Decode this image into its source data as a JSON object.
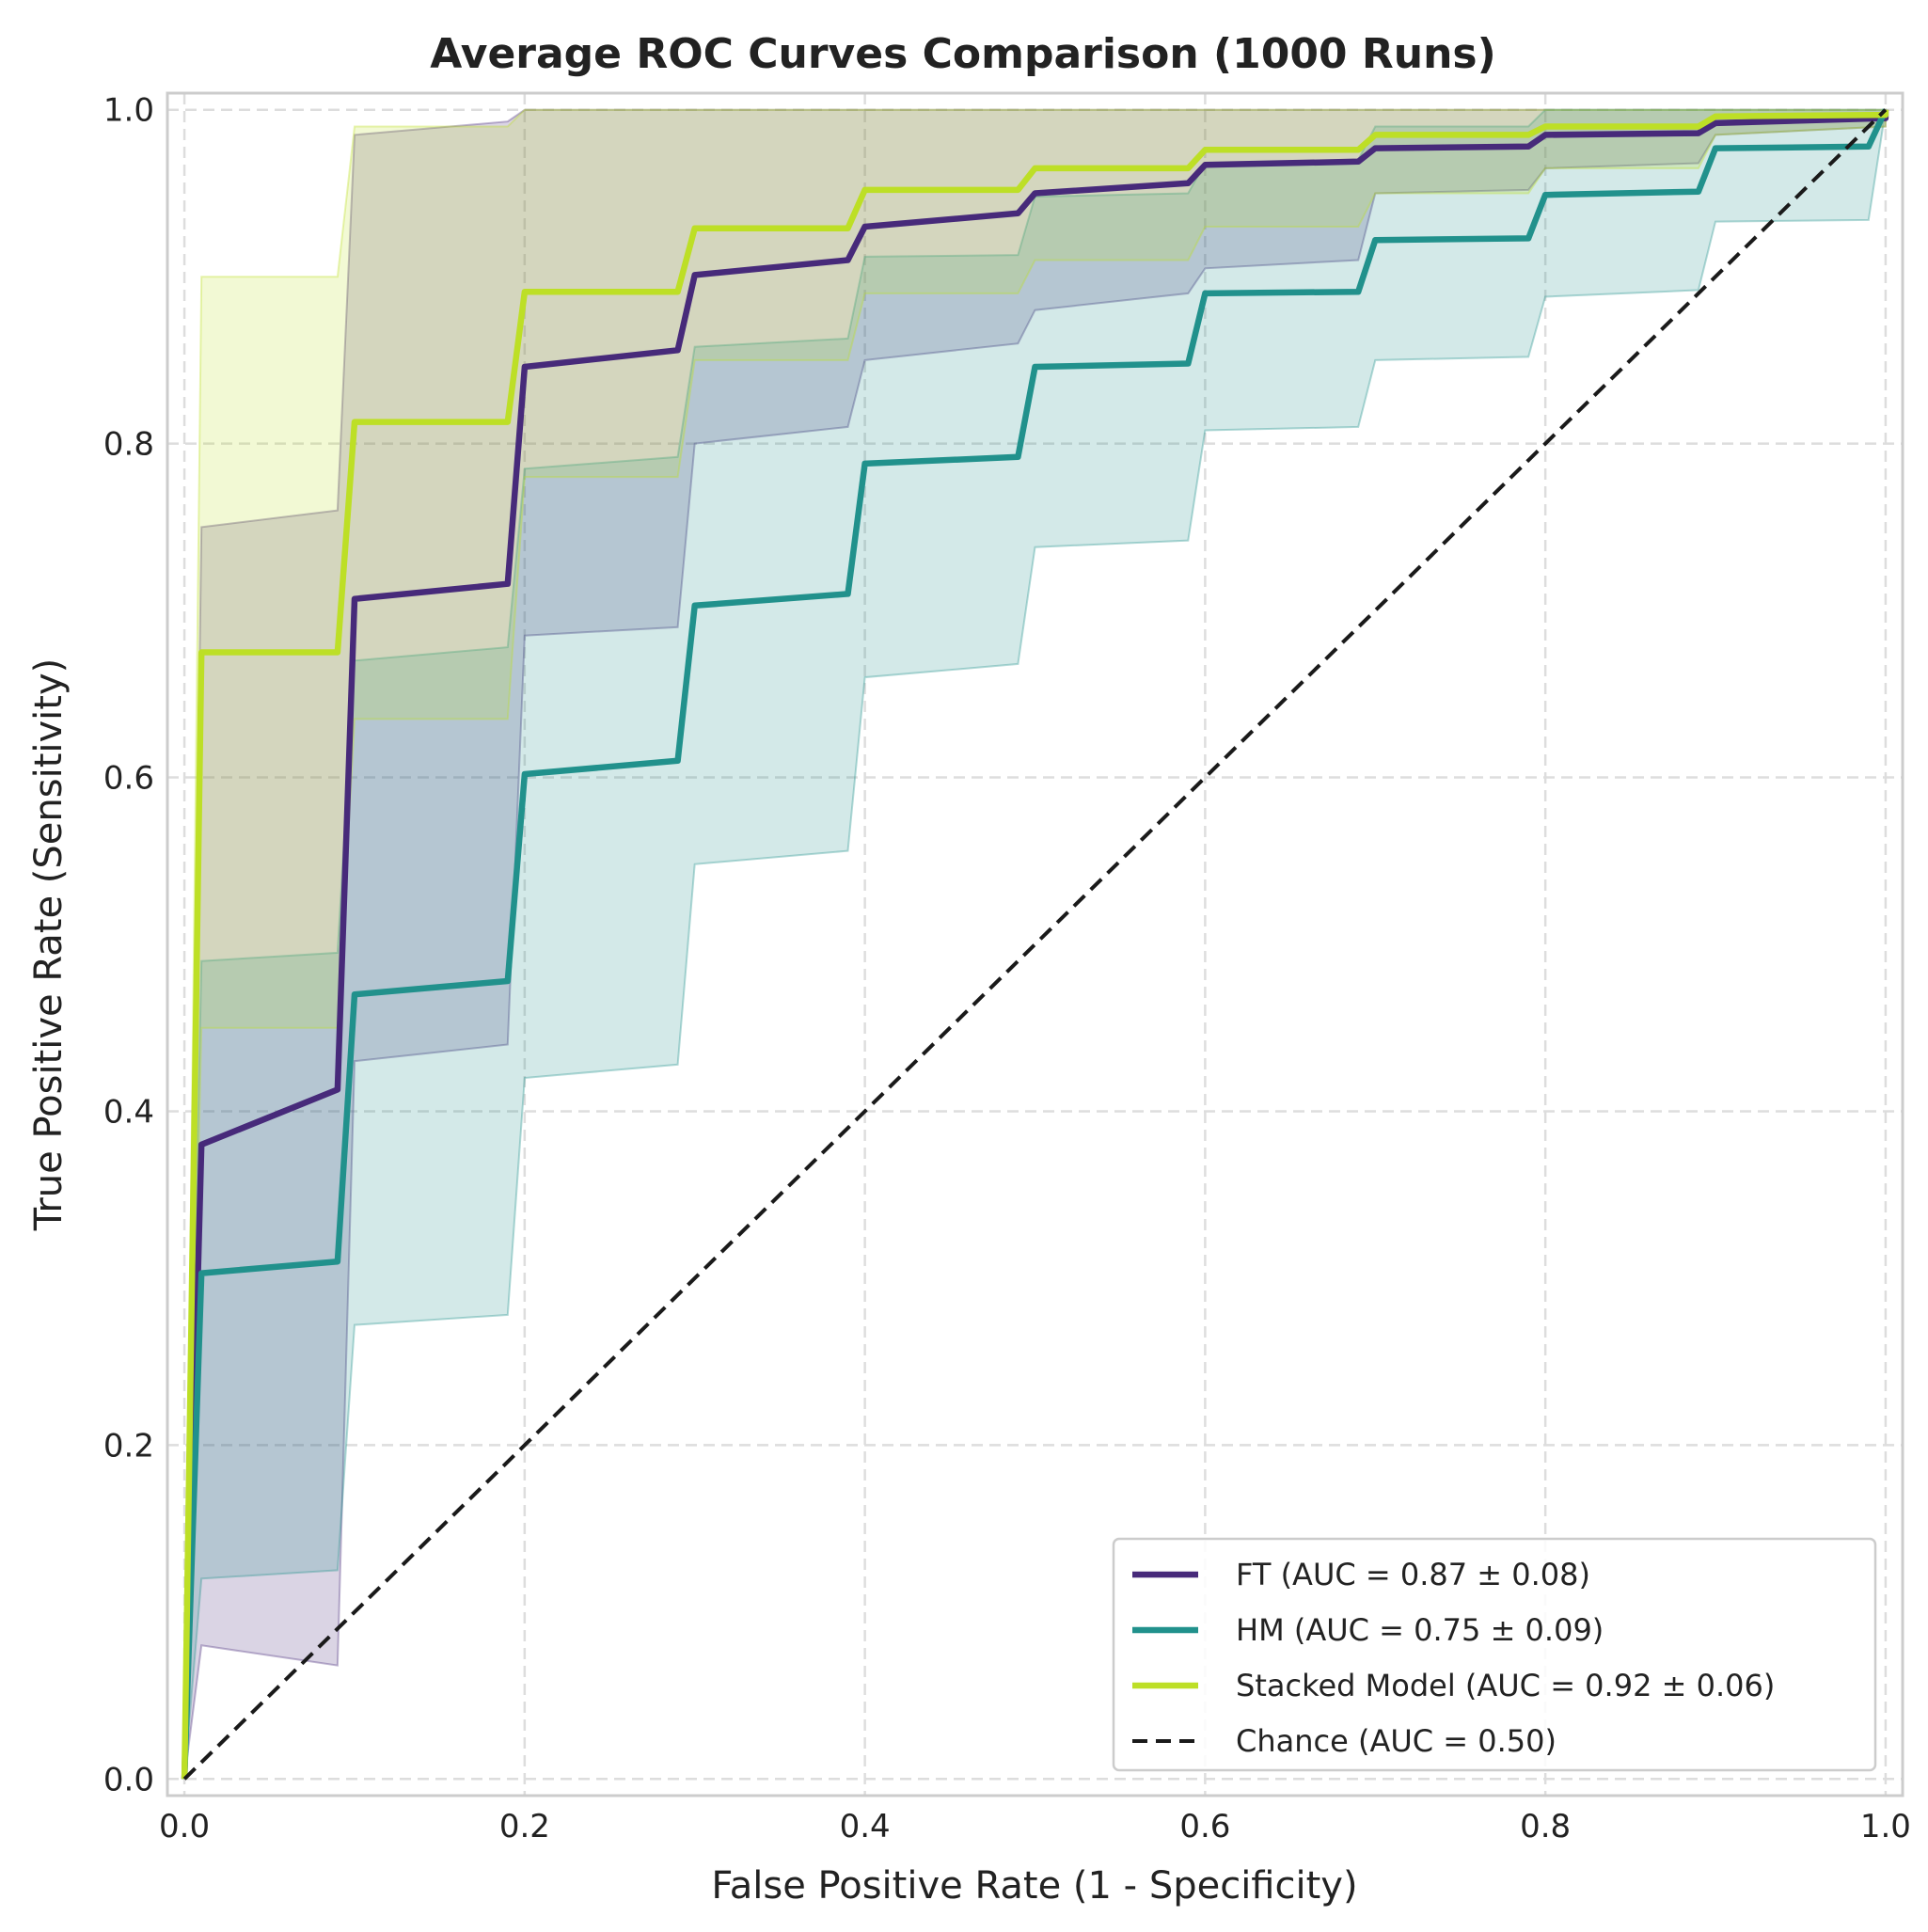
{
  "chart_data": {
    "type": "line",
    "title": "Average ROC Curves Comparison (1000 Runs)",
    "xlabel": "False Positive Rate (1 - Specificity)",
    "ylabel": "True Positive Rate (Sensitivity)",
    "xlim": [
      -0.01,
      1.01
    ],
    "ylim": [
      -0.01,
      1.01
    ],
    "xticks": [
      0.0,
      0.2,
      0.4,
      0.6,
      0.8,
      1.0
    ],
    "yticks": [
      0.0,
      0.2,
      0.4,
      0.6,
      0.8,
      1.0
    ],
    "xtick_labels": [
      "0.0",
      "0.2",
      "0.4",
      "0.6",
      "0.8",
      "1.0"
    ],
    "ytick_labels": [
      "0.0",
      "0.2",
      "0.4",
      "0.6",
      "0.8",
      "1.0"
    ],
    "grid": true,
    "legend_position": "lower-right",
    "series": [
      {
        "name": "FT (AUC = 0.87 ± 0.08)",
        "color": "#472a7a",
        "fill_color": "#472a7a",
        "fill_opacity": 0.2,
        "points": [
          [
            0,
            0
          ],
          [
            0.01,
            0.38
          ],
          [
            0.09,
            0.413
          ],
          [
            0.1,
            0.707
          ],
          [
            0.19,
            0.716
          ],
          [
            0.2,
            0.846
          ],
          [
            0.29,
            0.856
          ],
          [
            0.3,
            0.901
          ],
          [
            0.39,
            0.91
          ],
          [
            0.4,
            0.93
          ],
          [
            0.49,
            0.938
          ],
          [
            0.5,
            0.95
          ],
          [
            0.59,
            0.956
          ],
          [
            0.6,
            0.967
          ],
          [
            0.69,
            0.969
          ],
          [
            0.7,
            0.977
          ],
          [
            0.79,
            0.978
          ],
          [
            0.8,
            0.985
          ],
          [
            0.89,
            0.986
          ],
          [
            0.9,
            0.992
          ],
          [
            1.0,
            0.995
          ],
          [
            1.0,
            1.0
          ]
        ],
        "upper": [
          [
            0,
            0
          ],
          [
            0.01,
            0.75
          ],
          [
            0.09,
            0.76
          ],
          [
            0.1,
            0.985
          ],
          [
            0.19,
            0.993
          ],
          [
            0.2,
            1.0
          ],
          [
            1.0,
            1.0
          ]
        ],
        "lower": [
          [
            0,
            0
          ],
          [
            0.01,
            0.08
          ],
          [
            0.09,
            0.068
          ],
          [
            0.1,
            0.43
          ],
          [
            0.19,
            0.44
          ],
          [
            0.2,
            0.685
          ],
          [
            0.29,
            0.69
          ],
          [
            0.3,
            0.8
          ],
          [
            0.39,
            0.81
          ],
          [
            0.4,
            0.85
          ],
          [
            0.49,
            0.86
          ],
          [
            0.5,
            0.88
          ],
          [
            0.59,
            0.89
          ],
          [
            0.6,
            0.905
          ],
          [
            0.69,
            0.91
          ],
          [
            0.7,
            0.95
          ],
          [
            0.79,
            0.952
          ],
          [
            0.8,
            0.965
          ],
          [
            0.89,
            0.968
          ],
          [
            0.9,
            0.985
          ],
          [
            1.0,
            0.99
          ],
          [
            1.0,
            1.0
          ]
        ]
      },
      {
        "name": "HM (AUC = 0.75 ± 0.09)",
        "color": "#21918c",
        "fill_color": "#21918c",
        "fill_opacity": 0.2,
        "points": [
          [
            0,
            0
          ],
          [
            0.01,
            0.303
          ],
          [
            0.09,
            0.31
          ],
          [
            0.1,
            0.47
          ],
          [
            0.19,
            0.478
          ],
          [
            0.2,
            0.602
          ],
          [
            0.29,
            0.61
          ],
          [
            0.3,
            0.703
          ],
          [
            0.39,
            0.71
          ],
          [
            0.4,
            0.788
          ],
          [
            0.49,
            0.792
          ],
          [
            0.5,
            0.846
          ],
          [
            0.59,
            0.848
          ],
          [
            0.6,
            0.89
          ],
          [
            0.69,
            0.891
          ],
          [
            0.7,
            0.922
          ],
          [
            0.79,
            0.923
          ],
          [
            0.8,
            0.949
          ],
          [
            0.89,
            0.951
          ],
          [
            0.9,
            0.977
          ],
          [
            0.99,
            0.978
          ],
          [
            1.0,
            1.0
          ]
        ],
        "upper": [
          [
            0,
            0
          ],
          [
            0.01,
            0.49
          ],
          [
            0.09,
            0.495
          ],
          [
            0.1,
            0.67
          ],
          [
            0.19,
            0.678
          ],
          [
            0.2,
            0.785
          ],
          [
            0.29,
            0.792
          ],
          [
            0.3,
            0.858
          ],
          [
            0.39,
            0.863
          ],
          [
            0.4,
            0.912
          ],
          [
            0.49,
            0.913
          ],
          [
            0.5,
            0.948
          ],
          [
            0.59,
            0.95
          ],
          [
            0.6,
            0.968
          ],
          [
            0.69,
            0.97
          ],
          [
            0.7,
            0.99
          ],
          [
            0.79,
            0.99
          ],
          [
            0.8,
            1.0
          ],
          [
            1.0,
            1.0
          ]
        ],
        "lower": [
          [
            0,
            0
          ],
          [
            0.01,
            0.12
          ],
          [
            0.09,
            0.125
          ],
          [
            0.1,
            0.272
          ],
          [
            0.19,
            0.278
          ],
          [
            0.2,
            0.42
          ],
          [
            0.29,
            0.428
          ],
          [
            0.3,
            0.548
          ],
          [
            0.39,
            0.556
          ],
          [
            0.4,
            0.66
          ],
          [
            0.49,
            0.668
          ],
          [
            0.5,
            0.738
          ],
          [
            0.59,
            0.742
          ],
          [
            0.6,
            0.808
          ],
          [
            0.69,
            0.81
          ],
          [
            0.7,
            0.85
          ],
          [
            0.79,
            0.852
          ],
          [
            0.8,
            0.888
          ],
          [
            0.89,
            0.892
          ],
          [
            0.9,
            0.933
          ],
          [
            0.99,
            0.934
          ],
          [
            1.0,
            1.0
          ]
        ]
      },
      {
        "name": "Stacked Model (AUC = 0.92 ± 0.06)",
        "color": "#bddf26",
        "fill_color": "#bddf26",
        "fill_opacity": 0.2,
        "points": [
          [
            0,
            0
          ],
          [
            0.01,
            0.675
          ],
          [
            0.09,
            0.675
          ],
          [
            0.1,
            0.813
          ],
          [
            0.19,
            0.813
          ],
          [
            0.2,
            0.891
          ],
          [
            0.29,
            0.891
          ],
          [
            0.3,
            0.929
          ],
          [
            0.39,
            0.929
          ],
          [
            0.4,
            0.952
          ],
          [
            0.49,
            0.952
          ],
          [
            0.5,
            0.965
          ],
          [
            0.59,
            0.965
          ],
          [
            0.6,
            0.976
          ],
          [
            0.69,
            0.976
          ],
          [
            0.7,
            0.985
          ],
          [
            0.79,
            0.985
          ],
          [
            0.8,
            0.99
          ],
          [
            0.89,
            0.99
          ],
          [
            0.9,
            0.996
          ],
          [
            1.0,
            0.997
          ],
          [
            1.0,
            1.0
          ]
        ],
        "upper": [
          [
            0,
            0
          ],
          [
            0.01,
            0.9
          ],
          [
            0.09,
            0.9
          ],
          [
            0.1,
            0.99
          ],
          [
            0.19,
            0.99
          ],
          [
            0.2,
            1.0
          ],
          [
            1.0,
            1.0
          ]
        ],
        "lower": [
          [
            0,
            0
          ],
          [
            0.01,
            0.45
          ],
          [
            0.09,
            0.45
          ],
          [
            0.1,
            0.635
          ],
          [
            0.19,
            0.635
          ],
          [
            0.2,
            0.78
          ],
          [
            0.29,
            0.78
          ],
          [
            0.3,
            0.85
          ],
          [
            0.39,
            0.85
          ],
          [
            0.4,
            0.89
          ],
          [
            0.49,
            0.89
          ],
          [
            0.5,
            0.91
          ],
          [
            0.59,
            0.91
          ],
          [
            0.6,
            0.93
          ],
          [
            0.69,
            0.93
          ],
          [
            0.7,
            0.95
          ],
          [
            0.79,
            0.95
          ],
          [
            0.8,
            0.965
          ],
          [
            0.89,
            0.965
          ],
          [
            0.9,
            0.985
          ],
          [
            1.0,
            0.99
          ],
          [
            1.0,
            1.0
          ]
        ]
      },
      {
        "name": "Chance (AUC = 0.50)",
        "color": "#1a1a1a",
        "dashed": true,
        "points": [
          [
            0,
            0
          ],
          [
            1,
            1
          ]
        ]
      }
    ]
  }
}
